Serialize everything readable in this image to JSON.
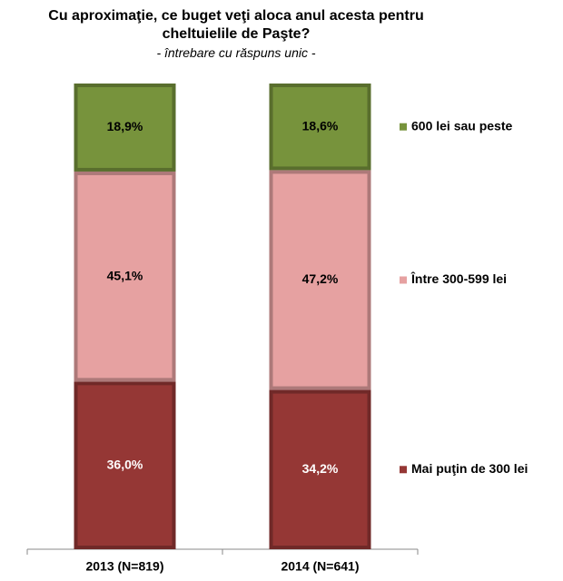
{
  "chart_data": {
    "type": "bar",
    "stacked": true,
    "title": "Cu aproximaţie, ce buget veţi aloca anul acesta pentru cheltuielile de Paşte?",
    "subtitle": "- întrebare cu răspuns unic -",
    "categories": [
      "2013 (N=819)",
      "2014 (N=641)"
    ],
    "series": [
      {
        "name": "Mai puţin de 300 lei",
        "color": "#953735",
        "values": [
          36.0,
          34.2
        ],
        "value_labels": [
          "36,0%",
          "34,2%"
        ]
      },
      {
        "name": "Între 300-599 lei",
        "color": "#e6a1a1",
        "values": [
          45.1,
          47.2
        ],
        "value_labels": [
          "45,1%",
          "47,2%"
        ]
      },
      {
        "name": "600 lei sau peste",
        "color": "#77933c",
        "values": [
          18.9,
          18.6
        ],
        "value_labels": [
          "18,9%",
          "18,6%"
        ]
      }
    ],
    "legend": "right"
  }
}
